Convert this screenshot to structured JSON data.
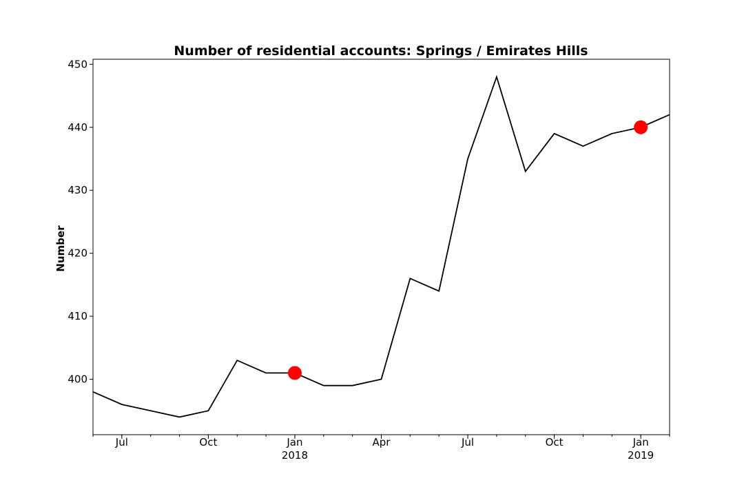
{
  "chart_data": {
    "type": "line",
    "title": "Number of residential accounts: Springs / Emirates Hills",
    "xlabel": "",
    "ylabel": "Number",
    "x": [
      "2017-06",
      "2017-07",
      "2017-08",
      "2017-09",
      "2017-10",
      "2017-11",
      "2017-12",
      "2018-01",
      "2018-02",
      "2018-03",
      "2018-04",
      "2018-05",
      "2018-06",
      "2018-07",
      "2018-08",
      "2018-09",
      "2018-10",
      "2018-11",
      "2018-12",
      "2019-01",
      "2019-02"
    ],
    "values": [
      398,
      396,
      395,
      394,
      395,
      403,
      401,
      401,
      399,
      399,
      400,
      416,
      414,
      435,
      448,
      433,
      439,
      437,
      439,
      440,
      442
    ],
    "line_color": "#000000",
    "highlights": [
      {
        "x": "2018-01",
        "value": 401
      },
      {
        "x": "2019-01",
        "value": 440
      }
    ],
    "highlight_color": "#ff0000",
    "xlim": [
      "2017-06",
      "2019-02"
    ],
    "ylim": [
      391.2,
      450.8
    ],
    "yticks": [
      400,
      410,
      420,
      430,
      440,
      450
    ],
    "xticks": [
      {
        "at": "2017-07",
        "label": "Jul",
        "sublabel": ""
      },
      {
        "at": "2017-10",
        "label": "Oct",
        "sublabel": ""
      },
      {
        "at": "2018-01",
        "label": "Jan",
        "sublabel": "2018"
      },
      {
        "at": "2018-04",
        "label": "Apr",
        "sublabel": ""
      },
      {
        "at": "2018-07",
        "label": "Jul",
        "sublabel": ""
      },
      {
        "at": "2018-10",
        "label": "Oct",
        "sublabel": ""
      },
      {
        "at": "2019-01",
        "label": "Jan",
        "sublabel": "2019"
      }
    ],
    "grid": false,
    "legend": "none"
  }
}
